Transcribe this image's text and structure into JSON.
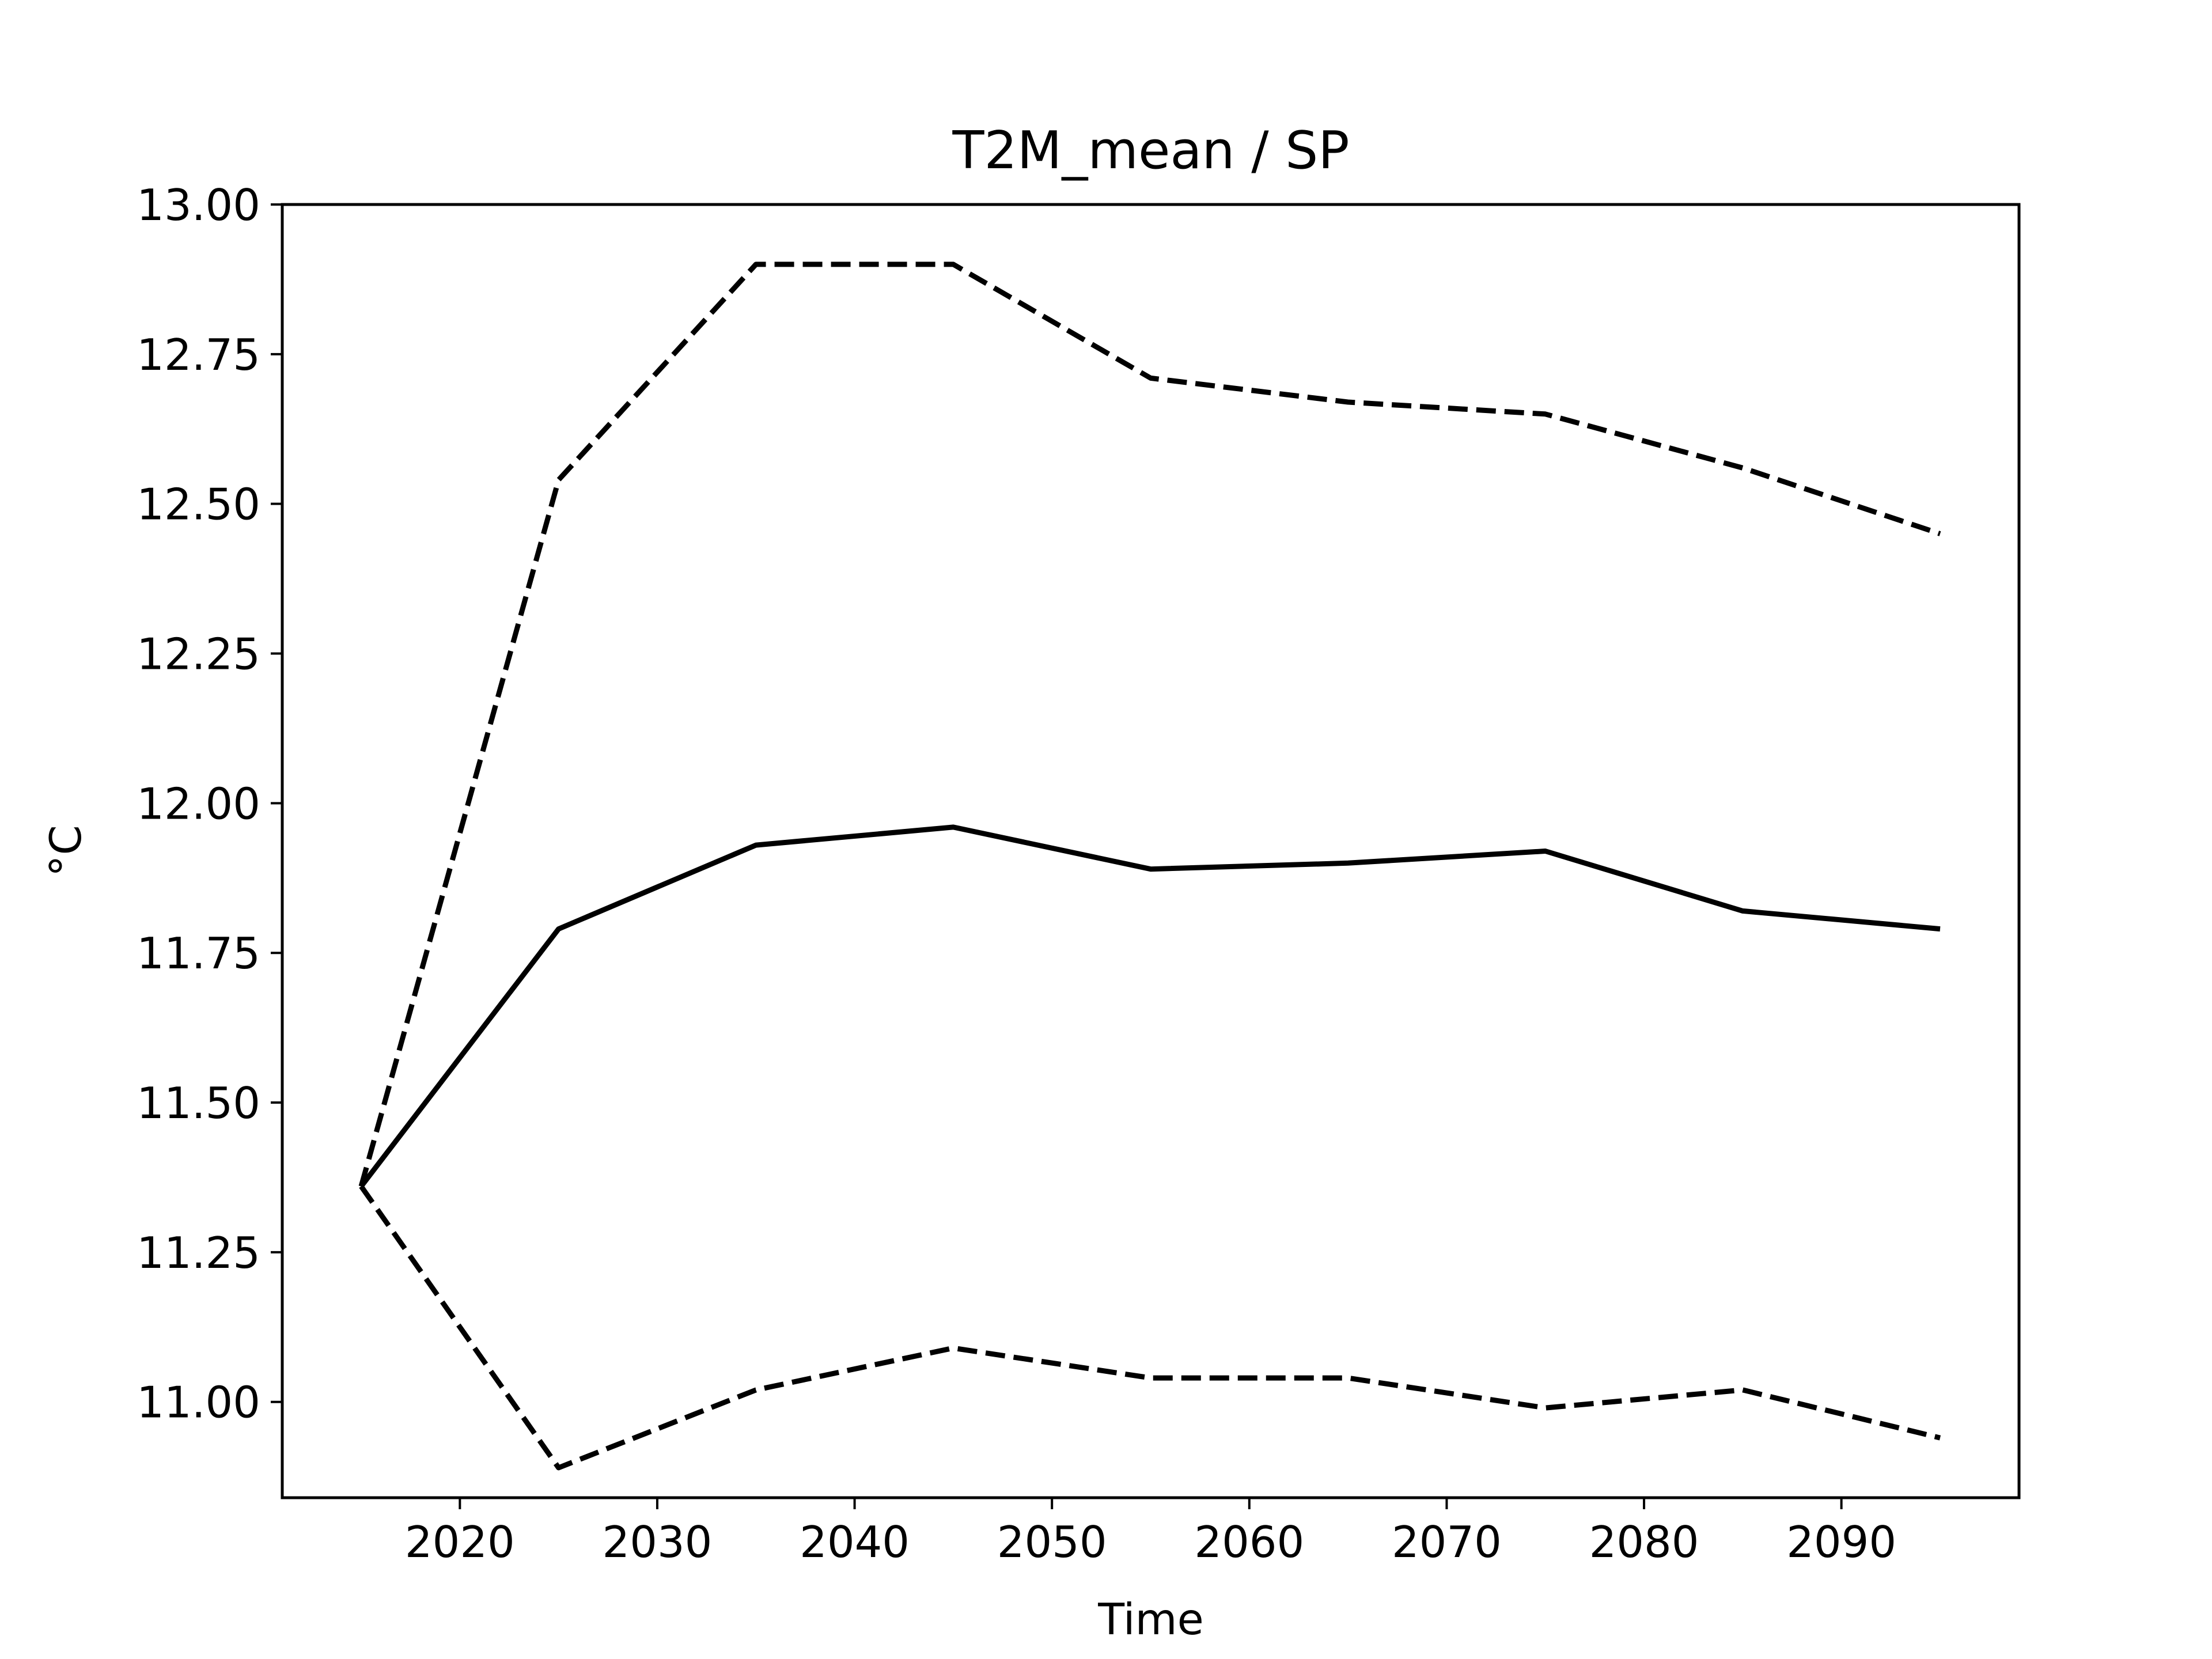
{
  "chart_data": {
    "type": "line",
    "title": "T2M_mean / SP",
    "xlabel": "Time",
    "ylabel": "°C",
    "xlim": [
      2011,
      2099
    ],
    "ylim": [
      10.84,
      13.0
    ],
    "xticks": [
      "2020",
      "2030",
      "2040",
      "2050",
      "2060",
      "2070",
      "2080",
      "2090"
    ],
    "yticks": [
      "11.00",
      "11.25",
      "11.50",
      "11.75",
      "12.00",
      "12.25",
      "12.50",
      "12.75",
      "13.00"
    ],
    "x": [
      2015,
      2025,
      2035,
      2045,
      2055,
      2065,
      2075,
      2085,
      2095
    ],
    "grid": false,
    "series": [
      {
        "style": "solid",
        "color": "#000000",
        "values": [
          11.36,
          11.79,
          11.93,
          11.96,
          11.89,
          11.9,
          11.92,
          11.82,
          11.79
        ]
      },
      {
        "style": "dashed",
        "color": "#000000",
        "values": [
          11.36,
          12.54,
          12.9,
          12.9,
          12.71,
          12.67,
          12.65,
          12.56,
          12.45
        ]
      },
      {
        "style": "dashed",
        "color": "#000000",
        "values": [
          11.36,
          10.89,
          11.02,
          11.09,
          11.04,
          11.04,
          10.99,
          11.02,
          10.94
        ]
      }
    ]
  }
}
